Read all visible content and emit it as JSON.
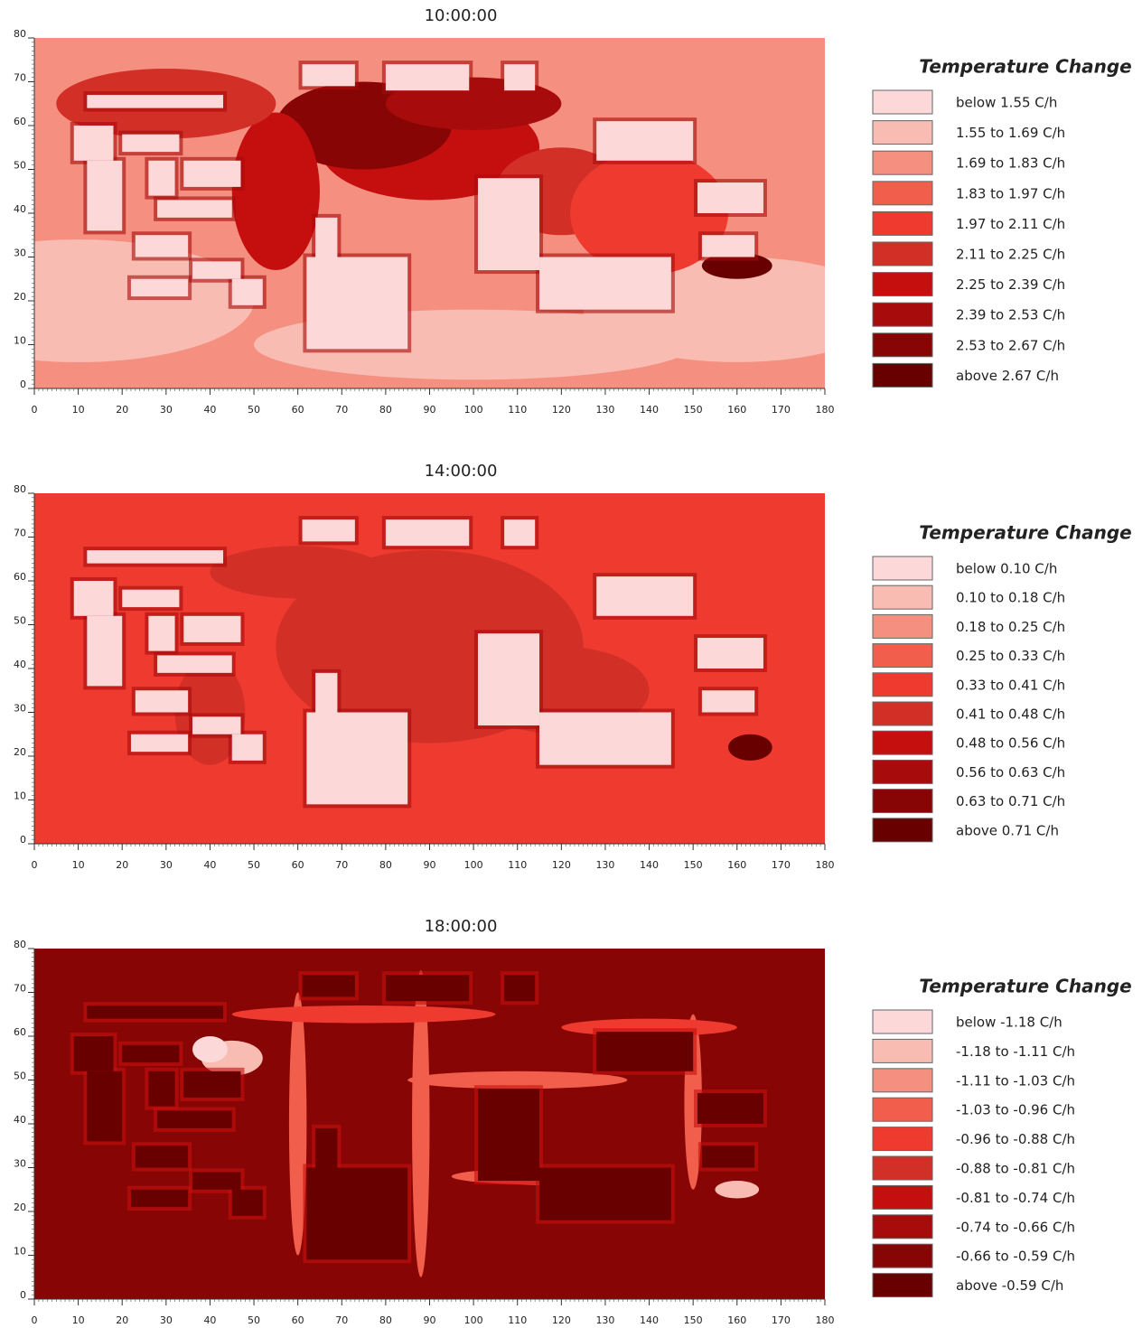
{
  "chart_data": [
    {
      "type": "heatmap",
      "title": "10:00:00",
      "xlim": [
        0,
        180
      ],
      "ylim": [
        0,
        80
      ],
      "xticks": [
        0,
        10,
        20,
        30,
        40,
        50,
        60,
        70,
        80,
        90,
        100,
        110,
        120,
        130,
        140,
        150,
        160,
        170,
        180
      ],
      "yticks": [
        0,
        10,
        20,
        30,
        40,
        50,
        60,
        70,
        80
      ],
      "legend_title": "Temperature Change",
      "legend": [
        {
          "label": "below 1.55 C/h",
          "color": "#fcd8d8"
        },
        {
          "label": "1.55 to 1.69 C/h",
          "color": "#f9bcb2"
        },
        {
          "label": "1.69 to 1.83 C/h",
          "color": "#f58f80"
        },
        {
          "label": "1.83 to 1.97 C/h",
          "color": "#f25e4c"
        },
        {
          "label": "1.97 to 2.11 C/h",
          "color": "#ee3a2f"
        },
        {
          "label": "2.11 to 2.25 C/h",
          "color": "#d22f27"
        },
        {
          "label": "2.25 to 2.39 C/h",
          "color": "#c40f0e"
        },
        {
          "label": "2.39 to 2.53 C/h",
          "color": "#a70b0b"
        },
        {
          "label": "2.53 to 2.67 C/h",
          "color": "#880505"
        },
        {
          "label": "above 2.67 C/h",
          "color": "#690000"
        }
      ]
    },
    {
      "type": "heatmap",
      "title": "14:00:00",
      "xlim": [
        0,
        180
      ],
      "ylim": [
        0,
        80
      ],
      "xticks": [
        0,
        10,
        20,
        30,
        40,
        50,
        60,
        70,
        80,
        90,
        100,
        110,
        120,
        130,
        140,
        150,
        160,
        170,
        180
      ],
      "yticks": [
        0,
        10,
        20,
        30,
        40,
        50,
        60,
        70,
        80
      ],
      "legend_title": "Temperature Change",
      "legend": [
        {
          "label": "below 0.10 C/h",
          "color": "#fcd8d8"
        },
        {
          "label": "0.10 to 0.18 C/h",
          "color": "#f9bcb2"
        },
        {
          "label": "0.18 to 0.25 C/h",
          "color": "#f58f80"
        },
        {
          "label": "0.25 to 0.33 C/h",
          "color": "#f25e4c"
        },
        {
          "label": "0.33 to 0.41 C/h",
          "color": "#ee3a2f"
        },
        {
          "label": "0.41 to 0.48 C/h",
          "color": "#d22f27"
        },
        {
          "label": "0.48 to 0.56 C/h",
          "color": "#c40f0e"
        },
        {
          "label": "0.56 to 0.63 C/h",
          "color": "#a70b0b"
        },
        {
          "label": "0.63 to 0.71 C/h",
          "color": "#880505"
        },
        {
          "label": "above 0.71 C/h",
          "color": "#690000"
        }
      ]
    },
    {
      "type": "heatmap",
      "title": "18:00:00",
      "xlim": [
        0,
        180
      ],
      "ylim": [
        0,
        80
      ],
      "xticks": [
        0,
        10,
        20,
        30,
        40,
        50,
        60,
        70,
        80,
        90,
        100,
        110,
        120,
        130,
        140,
        150,
        160,
        170,
        180
      ],
      "yticks": [
        0,
        10,
        20,
        30,
        40,
        50,
        60,
        70,
        80
      ],
      "legend_title": "Temperature Change",
      "legend": [
        {
          "label": "below -1.18 C/h",
          "color": "#fcd8d8"
        },
        {
          "label": "-1.18 to -1.11 C/h",
          "color": "#f9bcb2"
        },
        {
          "label": "-1.11 to -1.03 C/h",
          "color": "#f58f80"
        },
        {
          "label": "-1.03 to -0.96 C/h",
          "color": "#f25e4c"
        },
        {
          "label": "-0.96 to -0.88 C/h",
          "color": "#ee3a2f"
        },
        {
          "label": "-0.88 to -0.81 C/h",
          "color": "#d22f27"
        },
        {
          "label": "-0.81 to -0.74 C/h",
          "color": "#c40f0e"
        },
        {
          "label": "-0.74 to -0.66 C/h",
          "color": "#a70b0b"
        },
        {
          "label": "-0.66 to -0.59 C/h",
          "color": "#880505"
        },
        {
          "label": "above -0.59 C/h",
          "color": "#690000"
        }
      ]
    }
  ]
}
